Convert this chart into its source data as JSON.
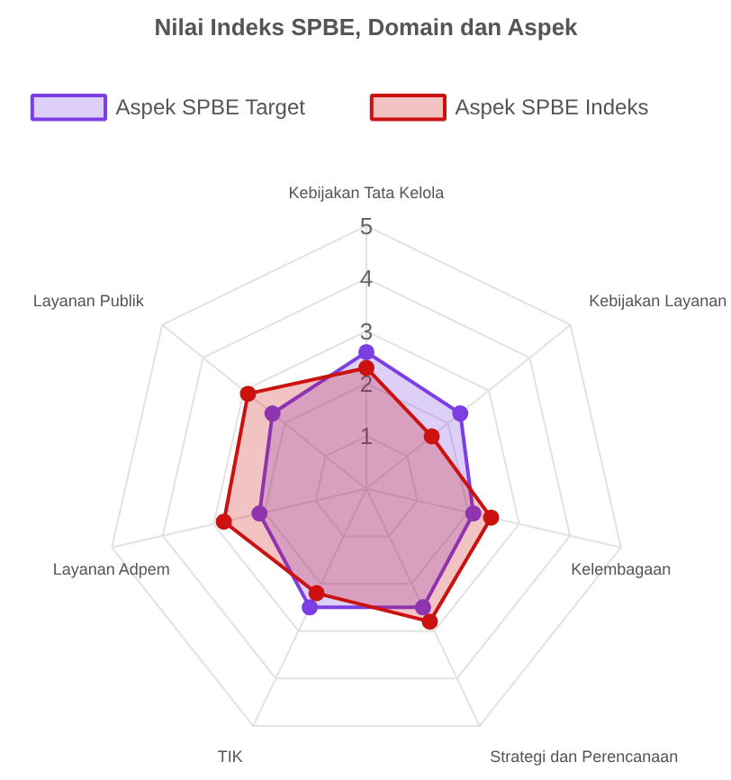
{
  "chart_data": {
    "type": "radar",
    "title": "Nilai Indeks SPBE, Domain dan Aspek",
    "categories": [
      "Kebijakan Tata Kelola",
      "Kebijakan Layanan",
      "Kelembagaan",
      "Strategi dan Perencanaan",
      "TIK",
      "Layanan Adpem",
      "Layanan Publik"
    ],
    "series": [
      {
        "name": "Aspek SPBE Target",
        "color": "#7b3fe4",
        "values": [
          2.6,
          2.3,
          2.1,
          2.5,
          2.5,
          2.1,
          2.3
        ]
      },
      {
        "name": "Aspek SPBE Indeks",
        "color": "#cc1111",
        "values": [
          2.3,
          1.6,
          2.45,
          2.8,
          2.2,
          2.8,
          2.9
        ]
      }
    ],
    "ylim": [
      0,
      5
    ],
    "yticks": [
      1,
      2,
      3,
      4,
      5
    ],
    "grid": true,
    "legend": "top",
    "marker": "circle",
    "line_style": "solid"
  }
}
